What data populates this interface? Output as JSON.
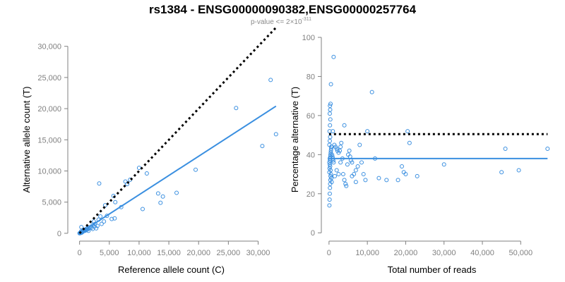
{
  "header": {
    "title": "rs1384 - ENSG00000090382,ENSG00000257764",
    "subtitle_prefix": "p-value <= 2×10",
    "subtitle_exponent": "-311"
  },
  "colors": {
    "points": "#3a8fe0",
    "fit": "#3a8fe0",
    "reference": "#000000",
    "axis": "#808080"
  },
  "chart_data": [
    {
      "type": "scatter",
      "xlabel": "Reference allele count (C)",
      "ylabel": "Alternative allele count (T)",
      "xlim": [
        -1500,
        33500
      ],
      "ylim": [
        -800,
        32000
      ],
      "xticks": [
        0,
        5000,
        10000,
        15000,
        20000,
        25000,
        30000
      ],
      "xtick_labels": [
        "0",
        "5,000",
        "10,000",
        "15,000",
        "20,000",
        "25,000",
        "30,000"
      ],
      "yticks": [
        0,
        5000,
        10000,
        15000,
        20000,
        25000,
        30000
      ],
      "ytick_labels": [
        "0",
        "5,000",
        "10,000",
        "15,000",
        "20,000",
        "25,000",
        "30,000"
      ],
      "grid": false,
      "points": [
        [
          0,
          0
        ],
        [
          100,
          60
        ],
        [
          150,
          40
        ],
        [
          200,
          120
        ],
        [
          250,
          300
        ],
        [
          300,
          150
        ],
        [
          350,
          100
        ],
        [
          400,
          250
        ],
        [
          450,
          180
        ],
        [
          500,
          300
        ],
        [
          600,
          450
        ],
        [
          700,
          350
        ],
        [
          800,
          550
        ],
        [
          900,
          400
        ],
        [
          1000,
          600
        ],
        [
          1100,
          500
        ],
        [
          1200,
          750
        ],
        [
          1300,
          600
        ],
        [
          1400,
          900
        ],
        [
          1600,
          800
        ],
        [
          1800,
          1000
        ],
        [
          2000,
          900
        ],
        [
          2200,
          1300
        ],
        [
          2500,
          1100
        ],
        [
          300,
          1000
        ],
        [
          1500,
          400
        ],
        [
          2200,
          700
        ],
        [
          2400,
          1900
        ],
        [
          2800,
          800
        ],
        [
          2600,
          1500
        ],
        [
          3000,
          1200
        ],
        [
          3200,
          2200
        ],
        [
          3500,
          2700
        ],
        [
          3700,
          1500
        ],
        [
          4100,
          1900
        ],
        [
          4300,
          4500
        ],
        [
          4600,
          2800
        ],
        [
          5400,
          2300
        ],
        [
          5900,
          2400
        ],
        [
          5700,
          6000
        ],
        [
          6000,
          5000
        ],
        [
          7000,
          4200
        ],
        [
          7700,
          8300
        ],
        [
          3300,
          8000
        ],
        [
          8500,
          8600
        ],
        [
          10000,
          10500
        ],
        [
          10600,
          3900
        ],
        [
          11300,
          9600
        ],
        [
          13200,
          6400
        ],
        [
          13600,
          4900
        ],
        [
          14000,
          5900
        ],
        [
          16300,
          6500
        ],
        [
          19500,
          10200
        ],
        [
          26300,
          20100
        ],
        [
          30700,
          14000
        ],
        [
          32100,
          24600
        ],
        [
          33000,
          15900
        ],
        [
          8000,
          7900
        ]
      ],
      "fit_line": {
        "x": [
          0,
          33000
        ],
        "y": [
          0,
          20400
        ]
      },
      "reference_line": {
        "x": [
          0,
          33000
        ],
        "y": [
          0,
          33000
        ]
      }
    },
    {
      "type": "scatter",
      "xlabel": "Total number of reads",
      "ylabel": "Percentage alternative (T)",
      "xlim": [
        -2000,
        57500
      ],
      "ylim": [
        -1,
        100
      ],
      "xticks": [
        0,
        10000,
        20000,
        30000,
        40000,
        50000
      ],
      "xtick_labels": [
        "0",
        "10,000",
        "20,000",
        "30,000",
        "40,000",
        "50,000"
      ],
      "yticks": [
        0,
        20,
        40,
        60,
        80,
        100
      ],
      "ytick_labels": [
        "0",
        "20",
        "40",
        "60",
        "80",
        "100"
      ],
      "grid": false,
      "points": [
        [
          100,
          14
        ],
        [
          150,
          17
        ],
        [
          200,
          20
        ],
        [
          250,
          23
        ],
        [
          300,
          25
        ],
        [
          350,
          27
        ],
        [
          400,
          29
        ],
        [
          100,
          31
        ],
        [
          150,
          33
        ],
        [
          200,
          35
        ],
        [
          250,
          37
        ],
        [
          300,
          38
        ],
        [
          350,
          39
        ],
        [
          400,
          40
        ],
        [
          450,
          41
        ],
        [
          500,
          42
        ],
        [
          550,
          43
        ],
        [
          600,
          44
        ],
        [
          100,
          36
        ],
        [
          200,
          38
        ],
        [
          300,
          34
        ],
        [
          400,
          32
        ],
        [
          500,
          30
        ],
        [
          600,
          28
        ],
        [
          700,
          26
        ],
        [
          800,
          40
        ],
        [
          900,
          39
        ],
        [
          1000,
          38
        ],
        [
          1100,
          37
        ],
        [
          1200,
          36
        ],
        [
          100,
          45
        ],
        [
          200,
          47
        ],
        [
          300,
          49
        ],
        [
          150,
          52
        ],
        [
          250,
          55
        ],
        [
          350,
          58
        ],
        [
          200,
          61
        ],
        [
          300,
          63
        ],
        [
          250,
          65
        ],
        [
          400,
          66
        ],
        [
          500,
          76
        ],
        [
          1200,
          90
        ],
        [
          700,
          44
        ],
        [
          1400,
          45
        ],
        [
          1700,
          44
        ],
        [
          2000,
          43
        ],
        [
          2200,
          42
        ],
        [
          2500,
          41
        ],
        [
          2800,
          42
        ],
        [
          3000,
          44
        ],
        [
          3200,
          46
        ],
        [
          3500,
          38
        ],
        [
          3700,
          30
        ],
        [
          4000,
          27
        ],
        [
          4300,
          25
        ],
        [
          4500,
          24
        ],
        [
          4800,
          35
        ],
        [
          5000,
          40
        ],
        [
          5300,
          42
        ],
        [
          5500,
          39
        ],
        [
          6000,
          29
        ],
        [
          6500,
          30
        ],
        [
          7000,
          26
        ],
        [
          7500,
          34
        ],
        [
          8000,
          45
        ],
        [
          9000,
          30
        ],
        [
          9500,
          27
        ],
        [
          10000,
          52
        ],
        [
          11200,
          72
        ],
        [
          12000,
          38
        ],
        [
          13000,
          28
        ],
        [
          15000,
          27
        ],
        [
          18000,
          27
        ],
        [
          19000,
          34
        ],
        [
          19500,
          31
        ],
        [
          20000,
          30
        ],
        [
          20500,
          52
        ],
        [
          21000,
          46
        ],
        [
          23000,
          29
        ],
        [
          30000,
          35
        ],
        [
          45000,
          31
        ],
        [
          46000,
          43
        ],
        [
          49500,
          32
        ],
        [
          57000,
          43
        ],
        [
          2000,
          32
        ],
        [
          1500,
          29
        ],
        [
          1000,
          52
        ],
        [
          2500,
          30
        ],
        [
          4000,
          55
        ],
        [
          5700,
          37
        ],
        [
          7000,
          32
        ],
        [
          8500,
          36
        ],
        [
          3000,
          36
        ],
        [
          6000,
          36
        ]
      ],
      "fit_line": {
        "x": [
          0,
          57000
        ],
        "y": [
          38,
          38
        ]
      },
      "reference_line": {
        "x": [
          0,
          57000
        ],
        "y": [
          50.5,
          50.5
        ]
      }
    }
  ]
}
